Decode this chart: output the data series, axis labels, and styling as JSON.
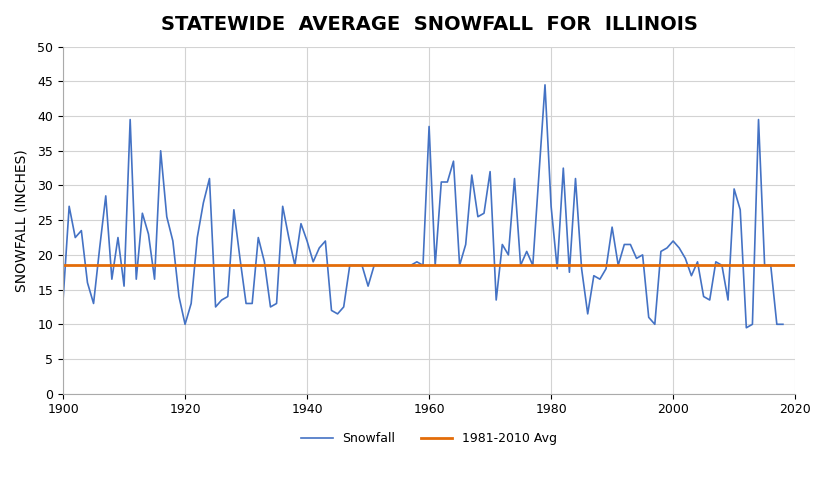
{
  "title": "STATEWIDE  AVERAGE  SNOWFALL  FOR  ILLINOIS",
  "ylabel": "SNOWFALL (INCHES)",
  "avg_value": 18.5,
  "avg_label": "1981-2010 Avg",
  "snowfall_label": "Snowfall",
  "xlim": [
    1900,
    2020
  ],
  "ylim": [
    0,
    50
  ],
  "yticks": [
    0,
    5,
    10,
    15,
    20,
    25,
    30,
    35,
    40,
    45,
    50
  ],
  "xticks": [
    1900,
    1920,
    1940,
    1960,
    1980,
    2000,
    2020
  ],
  "line_color": "#4472C4",
  "avg_color": "#E36C09",
  "bg_color": "#FFFFFF",
  "grid_color": "#D3D3D3",
  "title_fontsize": 14,
  "label_fontsize": 10,
  "years": [
    1900,
    1901,
    1902,
    1903,
    1904,
    1905,
    1906,
    1907,
    1908,
    1909,
    1910,
    1911,
    1912,
    1913,
    1914,
    1915,
    1916,
    1917,
    1918,
    1919,
    1920,
    1921,
    1922,
    1923,
    1924,
    1925,
    1926,
    1927,
    1928,
    1929,
    1930,
    1931,
    1932,
    1933,
    1934,
    1935,
    1936,
    1937,
    1938,
    1939,
    1940,
    1941,
    1942,
    1943,
    1944,
    1945,
    1946,
    1947,
    1948,
    1949,
    1950,
    1951,
    1952,
    1953,
    1954,
    1955,
    1956,
    1957,
    1958,
    1959,
    1960,
    1961,
    1962,
    1963,
    1964,
    1965,
    1966,
    1967,
    1968,
    1969,
    1970,
    1971,
    1972,
    1973,
    1974,
    1975,
    1976,
    1977,
    1978,
    1979,
    1980,
    1981,
    1982,
    1983,
    1984,
    1985,
    1986,
    1987,
    1988,
    1989,
    1990,
    1991,
    1992,
    1993,
    1994,
    1995,
    1996,
    1997,
    1998,
    1999,
    2000,
    2001,
    2002,
    2003,
    2004,
    2005,
    2006,
    2007,
    2008,
    2009,
    2010,
    2011,
    2012,
    2013,
    2014,
    2015,
    2016,
    2017,
    2018
  ],
  "snowfall": [
    13.5,
    27.0,
    22.5,
    23.5,
    16.0,
    13.0,
    21.0,
    28.5,
    16.5,
    22.5,
    15.5,
    39.5,
    16.5,
    26.0,
    23.0,
    16.5,
    35.0,
    25.5,
    22.0,
    14.0,
    10.0,
    13.0,
    22.5,
    27.5,
    31.0,
    12.5,
    13.5,
    14.0,
    26.5,
    19.5,
    13.0,
    13.0,
    22.5,
    19.0,
    12.5,
    13.0,
    27.0,
    22.5,
    18.5,
    24.5,
    22.0,
    19.0,
    21.0,
    22.0,
    12.0,
    11.5,
    12.5,
    18.5,
    18.5,
    18.5,
    15.5,
    18.5,
    18.5,
    18.5,
    18.5,
    18.5,
    18.5,
    18.5,
    19.0,
    18.5,
    38.5,
    18.5,
    30.5,
    30.5,
    33.5,
    18.5,
    21.5,
    31.5,
    25.5,
    26.0,
    32.0,
    13.5,
    21.5,
    20.0,
    31.0,
    18.5,
    20.5,
    18.5,
    31.5,
    44.5,
    27.0,
    18.0,
    32.5,
    17.5,
    31.0,
    18.0,
    11.5,
    17.0,
    16.5,
    18.0,
    24.0,
    18.5,
    21.5,
    21.5,
    19.5,
    20.0,
    11.0,
    10.0,
    20.5,
    21.0,
    22.0,
    21.0,
    19.5,
    17.0,
    19.0,
    14.0,
    13.5,
    19.0,
    18.5,
    13.5,
    29.5,
    26.5,
    9.5,
    10.0,
    39.5,
    18.5,
    18.5,
    10.0,
    10.0
  ]
}
